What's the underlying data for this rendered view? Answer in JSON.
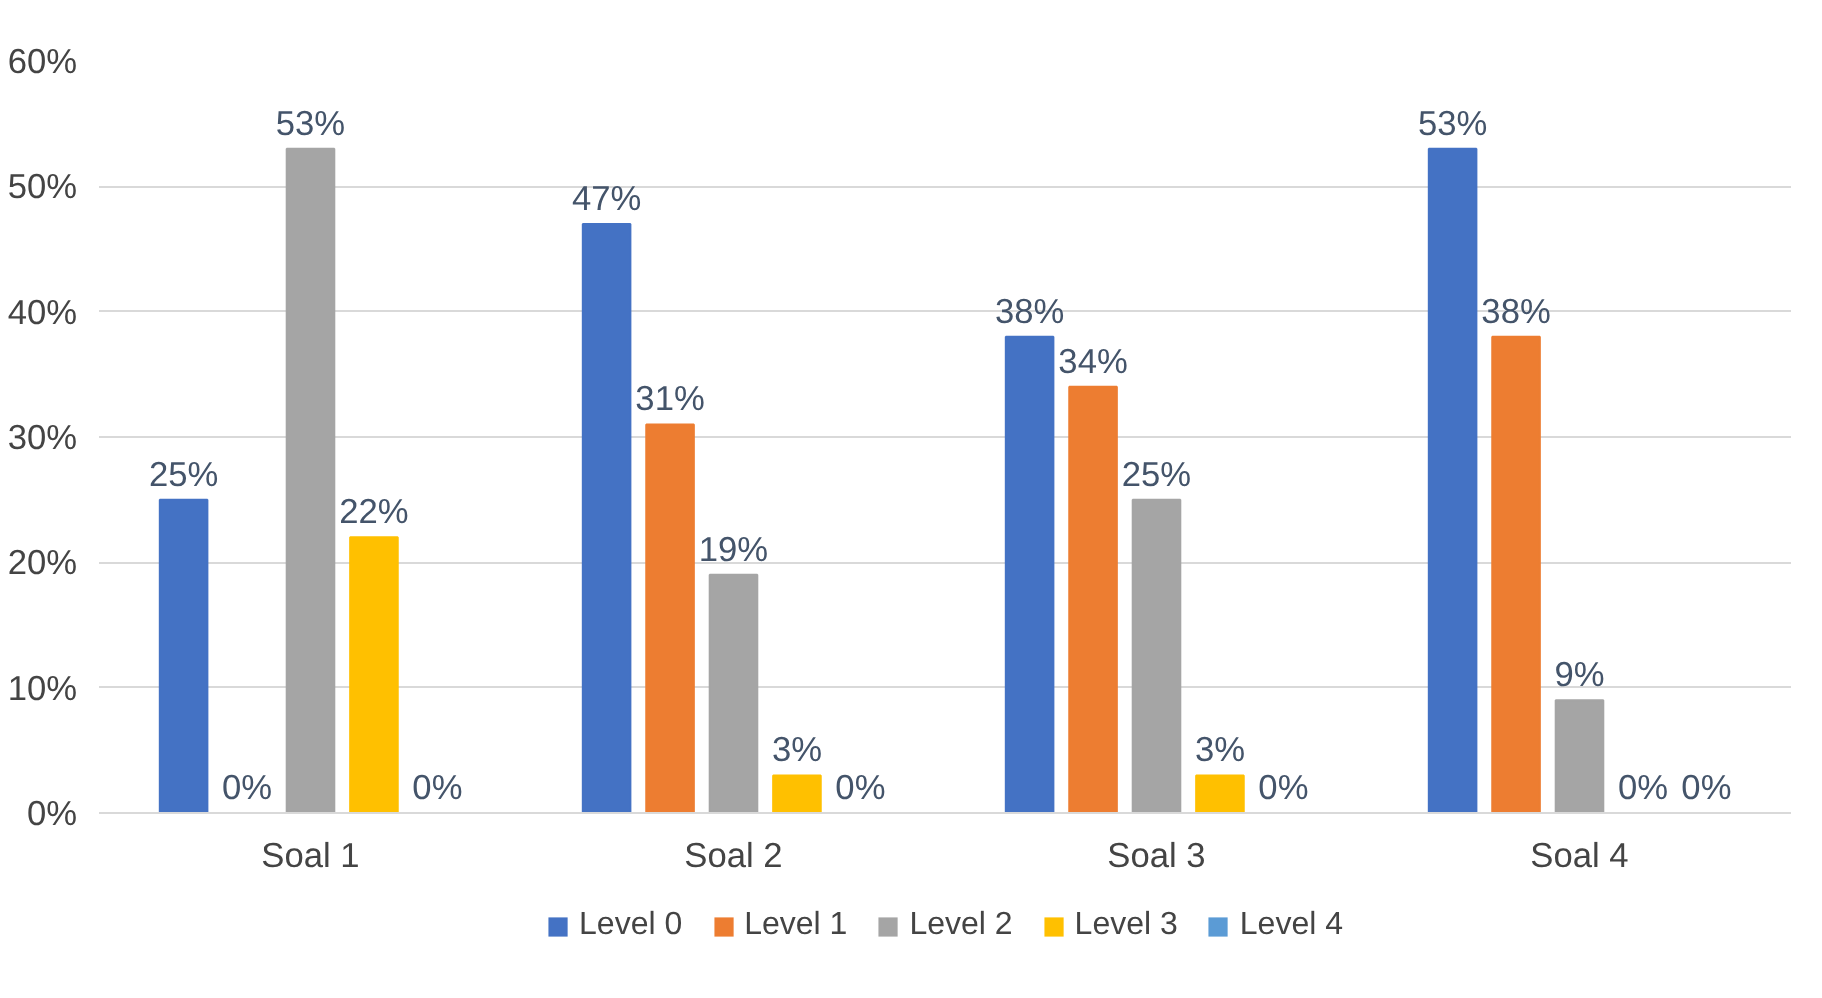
{
  "chart_data": {
    "type": "bar",
    "categories": [
      "Soal 1",
      "Soal 2",
      "Soal 3",
      "Soal 4"
    ],
    "series": [
      {
        "name": "Level 0",
        "color": "#4472c4",
        "values": [
          25,
          47,
          38,
          53
        ],
        "value_labels": [
          "25%",
          "47%",
          "38%",
          "53%"
        ]
      },
      {
        "name": "Level 1",
        "color": "#ed7d31",
        "values": [
          0,
          31,
          34,
          38
        ],
        "value_labels": [
          "0%",
          "31%",
          "34%",
          "38%"
        ]
      },
      {
        "name": "Level 2",
        "color": "#a5a5a5",
        "values": [
          53,
          19,
          25,
          9
        ],
        "value_labels": [
          "53%",
          "19%",
          "25%",
          "9%"
        ]
      },
      {
        "name": "Level 3",
        "color": "#ffc000",
        "values": [
          22,
          3,
          3,
          0
        ],
        "value_labels": [
          "22%",
          "3%",
          "3%",
          "0%"
        ]
      },
      {
        "name": "Level 4",
        "color": "#5b9bd5",
        "values": [
          0,
          0,
          0,
          0
        ],
        "value_labels": [
          "0%",
          "0%",
          "0%",
          "0%"
        ]
      }
    ],
    "ylim": [
      0,
      60
    ],
    "yticks": [
      {
        "value": 0,
        "label": "0%"
      },
      {
        "value": 10,
        "label": "10%"
      },
      {
        "value": 20,
        "label": "20%"
      },
      {
        "value": 30,
        "label": "30%"
      },
      {
        "value": 40,
        "label": "40%"
      },
      {
        "value": 50,
        "label": "50%"
      },
      {
        "value": 60,
        "label": "60%"
      }
    ],
    "grid": "y",
    "legend": "bottom"
  }
}
